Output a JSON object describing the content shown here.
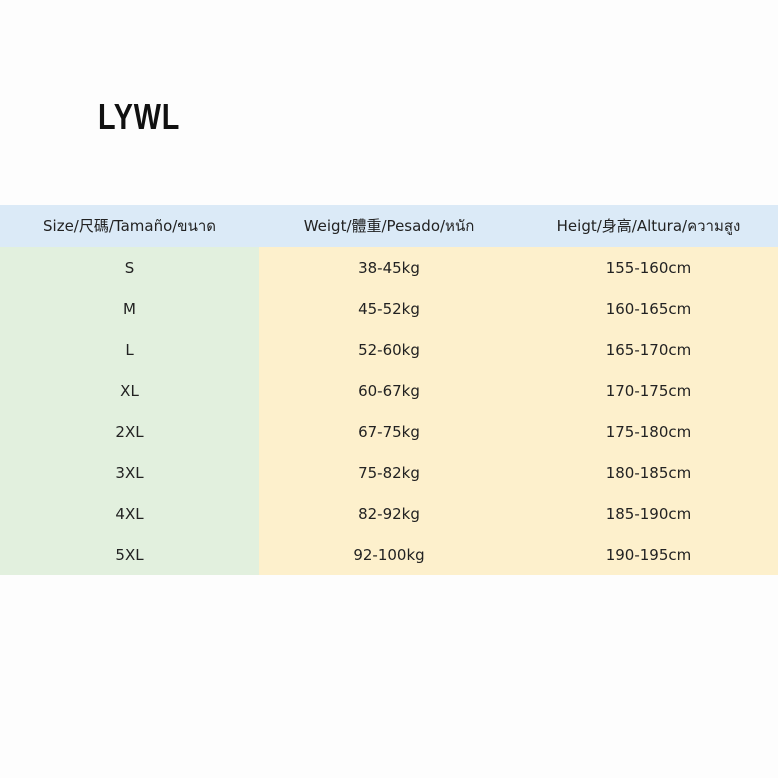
{
  "brand": "LYWL",
  "table": {
    "header": [
      "Size/尺碼/Tamaño/ขนาด",
      "Weigt/體重/Pesado/หนัก",
      "Heigt/身高/Altura/ความสูง"
    ],
    "rows": [
      [
        "S",
        "38-45kg",
        "155-160cm"
      ],
      [
        "M",
        "45-52kg",
        "160-165cm"
      ],
      [
        "L",
        "52-60kg",
        "165-170cm"
      ],
      [
        "XL",
        "60-67kg",
        "170-175cm"
      ],
      [
        "2XL",
        "67-75kg",
        "175-180cm"
      ],
      [
        "3XL",
        "75-82kg",
        "180-185cm"
      ],
      [
        "4XL",
        "82-92kg",
        "185-190cm"
      ],
      [
        "5XL",
        "92-100kg",
        "190-195cm"
      ]
    ]
  }
}
